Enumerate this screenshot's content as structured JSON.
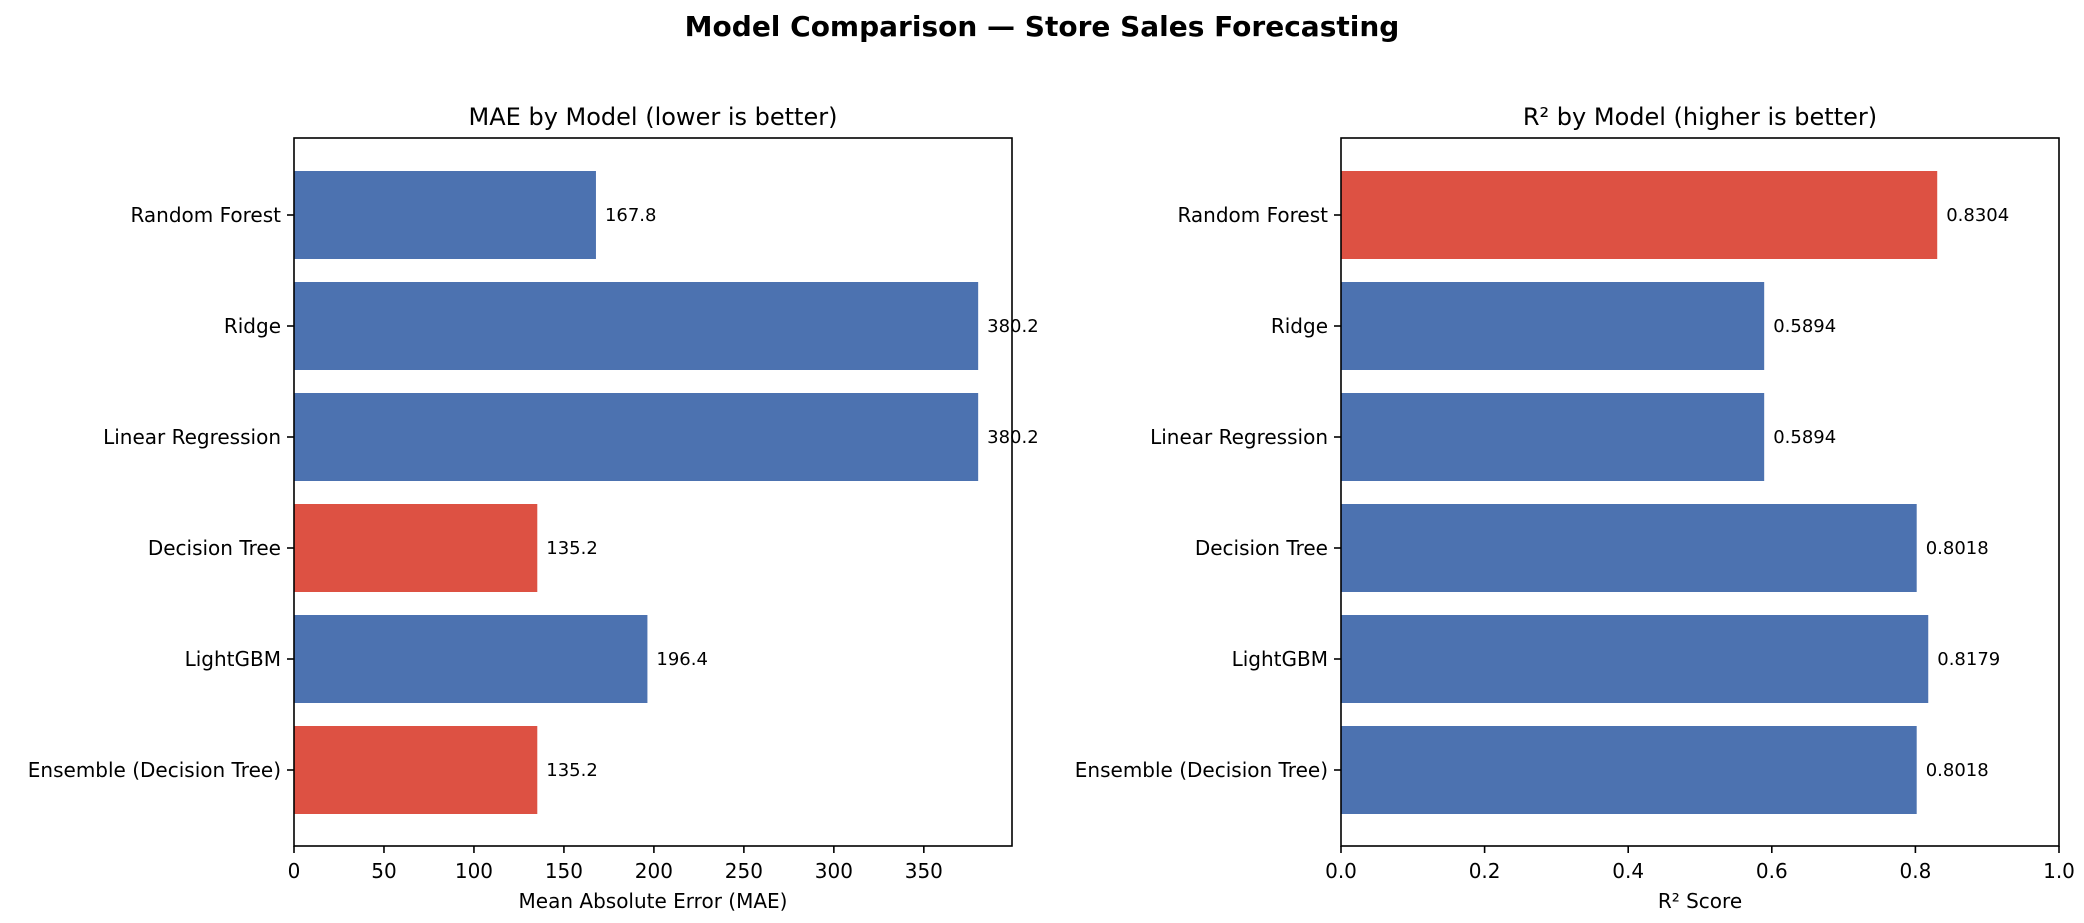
{
  "figure": {
    "title": "Model Comparison — Store Sales Forecasting"
  },
  "chart_data": [
    {
      "type": "bar",
      "orientation": "horizontal",
      "title": "MAE by Model (lower is better)",
      "xlabel": "Mean Absolute Error (MAE)",
      "ylabel": "",
      "categories": [
        "Random Forest",
        "Ridge",
        "Linear Regression",
        "Decision Tree",
        "LightGBM",
        "Ensemble (Decision Tree)"
      ],
      "values": [
        167.8,
        380.2,
        380.2,
        135.2,
        196.4,
        135.2
      ],
      "data_labels": [
        "167.8",
        "380.2",
        "380.2",
        "135.2",
        "196.4",
        "135.2"
      ],
      "highlighted": [
        false,
        false,
        false,
        true,
        false,
        true
      ],
      "xlim": [
        0,
        399
      ],
      "xticks": [
        0,
        50,
        100,
        150,
        200,
        250,
        300,
        350
      ],
      "xtick_labels": [
        "0",
        "50",
        "100",
        "150",
        "200",
        "250",
        "300",
        "350"
      ],
      "grid": false,
      "colors": {
        "bar": "#4c72b0",
        "highlight": "#dd5143"
      }
    },
    {
      "type": "bar",
      "orientation": "horizontal",
      "title": "R² by Model (higher is better)",
      "xlabel": "R² Score",
      "ylabel": "",
      "categories": [
        "Random Forest",
        "Ridge",
        "Linear Regression",
        "Decision Tree",
        "LightGBM",
        "Ensemble (Decision Tree)"
      ],
      "values": [
        0.8304,
        0.5894,
        0.5894,
        0.8018,
        0.8179,
        0.8018
      ],
      "data_labels": [
        "0.8304",
        "0.5894",
        "0.5894",
        "0.8018",
        "0.8179",
        "0.8018"
      ],
      "highlighted": [
        true,
        false,
        false,
        false,
        false,
        false
      ],
      "xlim": [
        0,
        1.0
      ],
      "xticks": [
        0,
        0.2,
        0.4,
        0.6,
        0.8,
        1.0
      ],
      "xtick_labels": [
        "0.0",
        "0.2",
        "0.4",
        "0.6",
        "0.8",
        "1.0"
      ],
      "grid": false,
      "colors": {
        "bar": "#4c72b0",
        "highlight": "#dd5143"
      }
    }
  ]
}
